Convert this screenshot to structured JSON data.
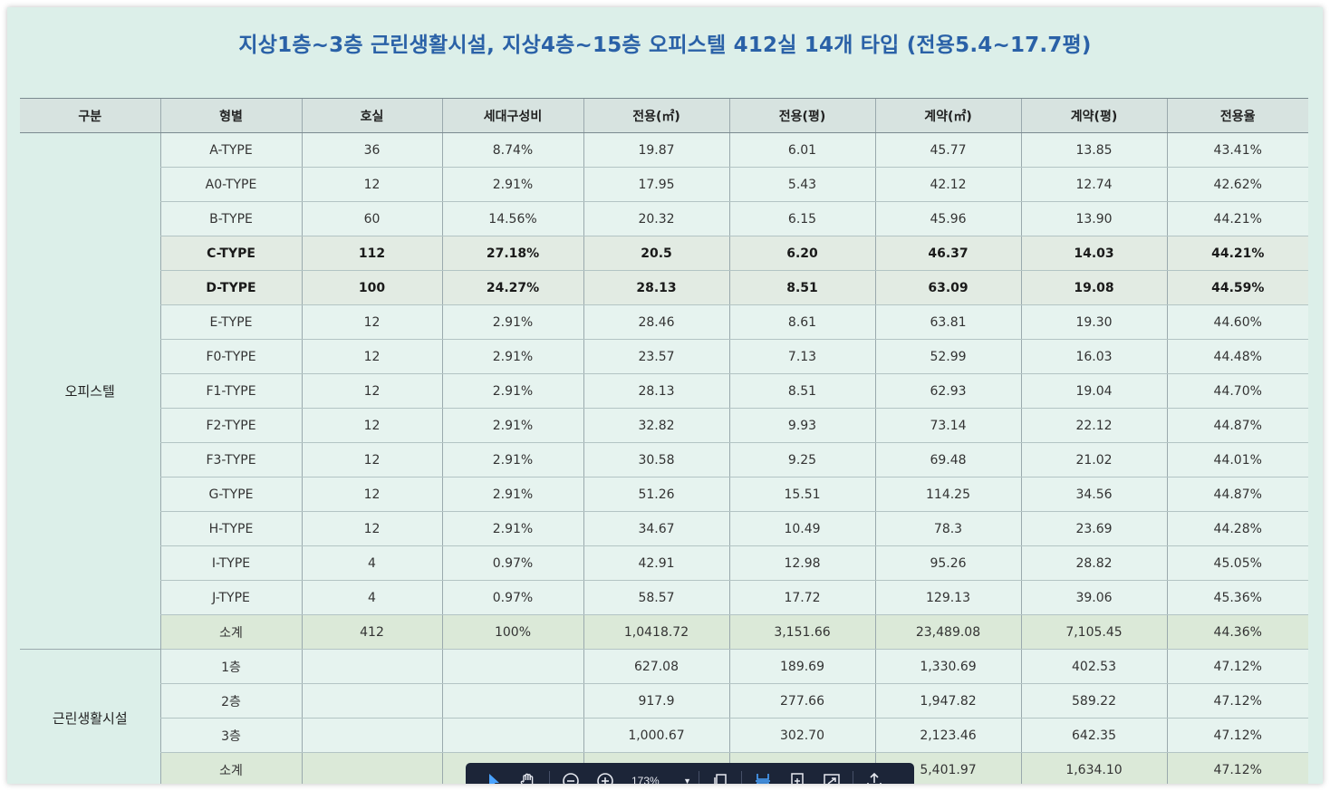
{
  "title": "지상1층~3층 근린생활시설, 지상4층~15층 오피스텔 412실 14개 타입 (전용5.4~17.7평)",
  "headers": [
    "구분",
    "형별",
    "호실",
    "세대구성비",
    "전용(㎡)",
    "전용(평)",
    "계약(㎡)",
    "계약(평)",
    "전용율"
  ],
  "officetel": {
    "label": "오피스텔",
    "rows": [
      [
        "A-TYPE",
        "36",
        "8.74%",
        "19.87",
        "6.01",
        "45.77",
        "13.85",
        "43.41%"
      ],
      [
        "A0-TYPE",
        "12",
        "2.91%",
        "17.95",
        "5.43",
        "42.12",
        "12.74",
        "42.62%"
      ],
      [
        "B-TYPE",
        "60",
        "14.56%",
        "20.32",
        "6.15",
        "45.96",
        "13.90",
        "44.21%"
      ],
      [
        "C-TYPE",
        "112",
        "27.18%",
        "20.5",
        "6.20",
        "46.37",
        "14.03",
        "44.21%"
      ],
      [
        "D-TYPE",
        "100",
        "24.27%",
        "28.13",
        "8.51",
        "63.09",
        "19.08",
        "44.59%"
      ],
      [
        "E-TYPE",
        "12",
        "2.91%",
        "28.46",
        "8.61",
        "63.81",
        "19.30",
        "44.60%"
      ],
      [
        "F0-TYPE",
        "12",
        "2.91%",
        "23.57",
        "7.13",
        "52.99",
        "16.03",
        "44.48%"
      ],
      [
        "F1-TYPE",
        "12",
        "2.91%",
        "28.13",
        "8.51",
        "62.93",
        "19.04",
        "44.70%"
      ],
      [
        "F2-TYPE",
        "12",
        "2.91%",
        "32.82",
        "9.93",
        "73.14",
        "22.12",
        "44.87%"
      ],
      [
        "F3-TYPE",
        "12",
        "2.91%",
        "30.58",
        "9.25",
        "69.48",
        "21.02",
        "44.01%"
      ],
      [
        "G-TYPE",
        "12",
        "2.91%",
        "51.26",
        "15.51",
        "114.25",
        "34.56",
        "44.87%"
      ],
      [
        "H-TYPE",
        "12",
        "2.91%",
        "34.67",
        "10.49",
        "78.3",
        "23.69",
        "44.28%"
      ],
      [
        "I-TYPE",
        "4",
        "0.97%",
        "42.91",
        "12.98",
        "95.26",
        "28.82",
        "45.05%"
      ],
      [
        "J-TYPE",
        "4",
        "0.97%",
        "58.57",
        "17.72",
        "129.13",
        "39.06",
        "45.36%"
      ]
    ],
    "bold_rows": [
      3,
      4
    ],
    "subtotal": [
      "소계",
      "412",
      "100%",
      "1,0418.72",
      "3,151.66",
      "23,489.08",
      "7,105.45",
      "44.36%"
    ]
  },
  "retail": {
    "label": "근린생활시설",
    "rows": [
      [
        "1층",
        "",
        "",
        "627.08",
        "189.69",
        "1,330.69",
        "402.53",
        "47.12%"
      ],
      [
        "2층",
        "",
        "",
        "917.9",
        "277.66",
        "1,947.82",
        "589.22",
        "47.12%"
      ],
      [
        "3층",
        "",
        "",
        "1,000.67",
        "302.70",
        "2,123.46",
        "642.35",
        "47.12%"
      ]
    ],
    "subtotal": [
      "소계",
      "",
      "",
      "",
      "",
      "5,401.97",
      "1,634.10",
      "47.12%"
    ]
  },
  "toolbar": {
    "zoom": "173%",
    "icons": [
      "pointer-icon",
      "hand-icon",
      "zoom-out-icon",
      "zoom-in-icon",
      "copy-icon",
      "fit-width-icon",
      "fit-page-icon",
      "fullscreen-icon",
      "export-icon"
    ]
  }
}
